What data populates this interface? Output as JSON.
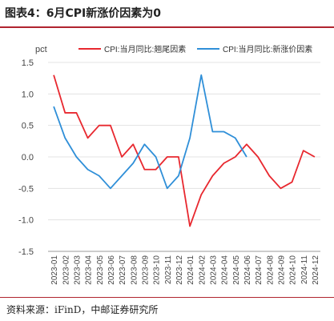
{
  "figure": {
    "title": "图表4：6月CPI新涨价因素为0",
    "source": "资料来源：iFinD，中邮证券研究所"
  },
  "chart_data": {
    "type": "line",
    "ylabel": "pct",
    "ylim": [
      -1.5,
      1.5
    ],
    "yticks": [
      "1.5",
      "1.0",
      "0.5",
      "0.0",
      "-0.5",
      "-1.0",
      "-1.5"
    ],
    "ytick_values": [
      1.5,
      1.0,
      0.5,
      0.0,
      -0.5,
      -1.0,
      -1.5
    ],
    "legend_position": "top",
    "categories": [
      "2023-01",
      "2023-02",
      "2023-03",
      "2023-04",
      "2023-05",
      "2023-06",
      "2023-07",
      "2023-08",
      "2023-09",
      "2023-10",
      "2023-11",
      "2023-12",
      "2024-01",
      "2024-02",
      "2024-03",
      "2024-04",
      "2024-05",
      "2024-06",
      "2024-07",
      "2024-08",
      "2024-09",
      "2024-10",
      "2024-11",
      "2024-12"
    ],
    "series": [
      {
        "name": "CPI:当月同比:翘尾因素",
        "color": "#e8282f",
        "values": [
          1.3,
          0.7,
          0.7,
          0.3,
          0.5,
          0.5,
          0.0,
          0.2,
          -0.2,
          -0.2,
          0.0,
          0.0,
          -1.1,
          -0.6,
          -0.3,
          -0.1,
          0.0,
          0.2,
          0.0,
          -0.3,
          -0.5,
          -0.4,
          0.1,
          0.0
        ]
      },
      {
        "name": "CPI:当月同比:新涨价因素",
        "color": "#2f8fd8",
        "values": [
          0.8,
          0.3,
          0.0,
          -0.2,
          -0.3,
          -0.5,
          -0.3,
          -0.1,
          0.2,
          0.0,
          -0.5,
          -0.3,
          0.3,
          1.3,
          0.4,
          0.4,
          0.3,
          0.0,
          null,
          null,
          null,
          null,
          null,
          null
        ]
      }
    ]
  }
}
